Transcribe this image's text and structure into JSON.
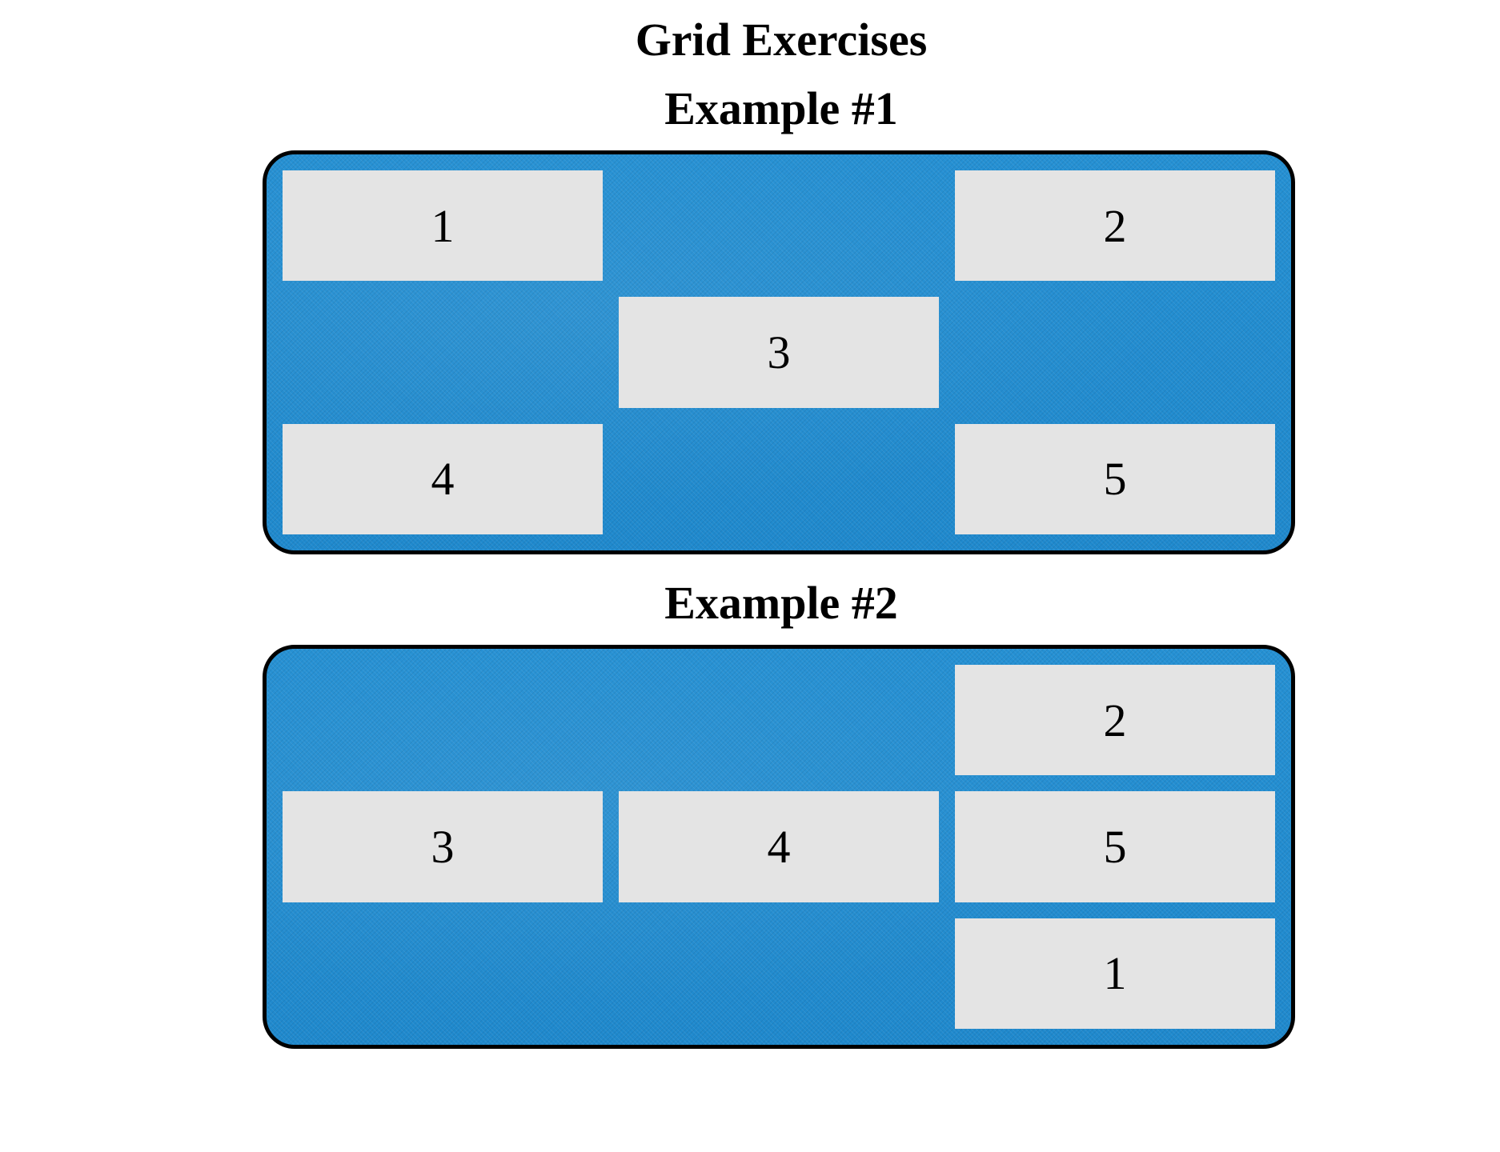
{
  "page": {
    "title": "Grid Exercises"
  },
  "examples": [
    {
      "title": "Example #1",
      "cells": [
        {
          "label": "1",
          "col": 1,
          "row": 1
        },
        {
          "label": "2",
          "col": 3,
          "row": 1
        },
        {
          "label": "3",
          "col": 2,
          "row": 2
        },
        {
          "label": "4",
          "col": 1,
          "row": 3
        },
        {
          "label": "5",
          "col": 3,
          "row": 3
        }
      ]
    },
    {
      "title": "Example #2",
      "cells": [
        {
          "label": "2",
          "col": 3,
          "row": 1
        },
        {
          "label": "3",
          "col": 1,
          "row": 2
        },
        {
          "label": "4",
          "col": 2,
          "row": 2
        },
        {
          "label": "5",
          "col": 3,
          "row": 2
        },
        {
          "label": "1",
          "col": 3,
          "row": 3
        }
      ]
    }
  ],
  "colors": {
    "container_blue": "#238ed1",
    "cell_gray": "#e4e4e4",
    "border": "#000000"
  }
}
